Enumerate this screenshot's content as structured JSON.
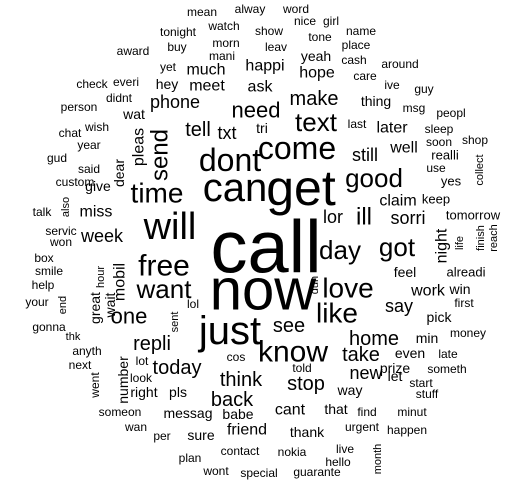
{
  "image": {
    "kind": "word cloud",
    "text_color": "#000000",
    "background": "#ffffff"
  },
  "words": [
    {
      "text": "call",
      "weight": 100
    },
    {
      "text": "now",
      "weight": 84
    },
    {
      "text": "get",
      "weight": 72
    },
    {
      "text": "can",
      "weight": 64
    },
    {
      "text": "just",
      "weight": 60
    },
    {
      "text": "will",
      "weight": 54
    },
    {
      "text": "dont",
      "weight": 50
    },
    {
      "text": "come",
      "weight": 48
    },
    {
      "text": "know",
      "weight": 46
    },
    {
      "text": "free",
      "weight": 44
    },
    {
      "text": "like",
      "weight": 42
    },
    {
      "text": "love",
      "weight": 40
    },
    {
      "text": "time",
      "weight": 40
    },
    {
      "text": "good",
      "weight": 38
    },
    {
      "text": "day",
      "weight": 37
    },
    {
      "text": "want",
      "weight": 37
    },
    {
      "text": "text",
      "weight": 36
    },
    {
      "text": "got",
      "weight": 36
    },
    {
      "text": "send",
      "weight": 34
    },
    {
      "text": "ill",
      "weight": 33
    },
    {
      "text": "one",
      "weight": 32
    },
    {
      "text": "need",
      "weight": 32
    },
    {
      "text": "home",
      "weight": 30
    },
    {
      "text": "take",
      "weight": 30
    },
    {
      "text": "back",
      "weight": 30
    },
    {
      "text": "today",
      "weight": 30
    },
    {
      "text": "see",
      "weight": 30
    },
    {
      "text": "repli",
      "weight": 28
    },
    {
      "text": "tell",
      "weight": 28
    },
    {
      "text": "make",
      "weight": 28
    },
    {
      "text": "think",
      "weight": 28
    },
    {
      "text": "stop",
      "weight": 28
    },
    {
      "text": "week",
      "weight": 28
    },
    {
      "text": "still",
      "weight": 27
    },
    {
      "text": "sorri",
      "weight": 27
    },
    {
      "text": "say",
      "weight": 27
    },
    {
      "text": "phone",
      "weight": 26
    },
    {
      "text": "txt",
      "weight": 26
    },
    {
      "text": "lor",
      "weight": 26
    },
    {
      "text": "new",
      "weight": 26
    },
    {
      "text": "later",
      "weight": 25
    },
    {
      "text": "ask",
      "weight": 25
    },
    {
      "text": "meet",
      "weight": 25
    },
    {
      "text": "much",
      "weight": 25
    },
    {
      "text": "happi",
      "weight": 24
    },
    {
      "text": "hope",
      "weight": 24
    },
    {
      "text": "well",
      "weight": 24
    },
    {
      "text": "work",
      "weight": 24
    },
    {
      "text": "claim",
      "weight": 24
    },
    {
      "text": "cant",
      "weight": 24
    },
    {
      "text": "pleas",
      "weight": 23
    },
    {
      "text": "miss",
      "weight": 23
    },
    {
      "text": "mobil",
      "weight": 22
    },
    {
      "text": "night",
      "weight": 22
    },
    {
      "text": "thing",
      "weight": 20
    },
    {
      "text": "friend",
      "weight": 22
    },
    {
      "text": "wat",
      "weight": 20
    },
    {
      "text": "hey",
      "weight": 20
    },
    {
      "text": "prize",
      "weight": 20
    },
    {
      "text": "number",
      "weight": 20
    },
    {
      "text": "thank",
      "weight": 20
    },
    {
      "text": "messag",
      "weight": 20
    },
    {
      "text": "feel",
      "weight": 18
    },
    {
      "text": "great",
      "weight": 18
    },
    {
      "text": "dear",
      "weight": 18
    },
    {
      "text": "give",
      "weight": 18
    },
    {
      "text": "wait",
      "weight": 18
    },
    {
      "text": "pls",
      "weight": 18
    },
    {
      "text": "right",
      "weight": 17
    },
    {
      "text": "even",
      "weight": 17
    },
    {
      "text": "way",
      "weight": 17
    },
    {
      "text": "babe",
      "weight": 16
    },
    {
      "text": "yeah",
      "weight": 16
    },
    {
      "text": "tri",
      "weight": 16
    },
    {
      "text": "pick",
      "weight": 16
    },
    {
      "text": "win",
      "weight": 16
    },
    {
      "text": "min",
      "weight": 16
    },
    {
      "text": "let",
      "weight": 16
    },
    {
      "text": "sure",
      "weight": 16
    },
    {
      "text": "that",
      "weight": 16
    },
    {
      "text": "alreadi",
      "weight": 15
    },
    {
      "text": "keep",
      "weight": 15
    },
    {
      "text": "realli",
      "weight": 15
    },
    {
      "text": "yes",
      "weight": 15
    },
    {
      "text": "tomorrow",
      "weight": 15
    },
    {
      "text": "first",
      "weight": 14
    },
    {
      "text": "start",
      "weight": 14
    },
    {
      "text": "sleep",
      "weight": 14
    },
    {
      "text": "said",
      "weight": 14
    },
    {
      "text": "contact",
      "weight": 14
    },
    {
      "text": "nokia",
      "weight": 14
    },
    {
      "text": "cos",
      "weight": 14
    },
    {
      "text": "find",
      "weight": 14
    },
    {
      "text": "urgent",
      "weight": 14
    },
    {
      "text": "someth",
      "weight": 13
    },
    {
      "text": "money",
      "weight": 13
    },
    {
      "text": "lol",
      "weight": 13
    },
    {
      "text": "msg",
      "weight": 13
    },
    {
      "text": "morn",
      "weight": 13
    },
    {
      "text": "show",
      "weight": 13
    },
    {
      "text": "leav",
      "weight": 13
    },
    {
      "text": "watch",
      "weight": 13
    },
    {
      "text": "tonight",
      "weight": 13
    },
    {
      "text": "mani",
      "weight": 12
    },
    {
      "text": "buy",
      "weight": 12
    },
    {
      "text": "place",
      "weight": 12
    },
    {
      "text": "name",
      "weight": 12
    },
    {
      "text": "tone",
      "weight": 12
    },
    {
      "text": "girl",
      "weight": 12
    },
    {
      "text": "nice",
      "weight": 12
    },
    {
      "text": "word",
      "weight": 12
    },
    {
      "text": "alway",
      "weight": 12
    },
    {
      "text": "mean",
      "weight": 12
    },
    {
      "text": "award",
      "weight": 12
    },
    {
      "text": "yet",
      "weight": 12
    },
    {
      "text": "cash",
      "weight": 12
    },
    {
      "text": "around",
      "weight": 12
    },
    {
      "text": "care",
      "weight": 12
    },
    {
      "text": "ive",
      "weight": 12
    },
    {
      "text": "guy",
      "weight": 12
    },
    {
      "text": "check",
      "weight": 12
    },
    {
      "text": "everi",
      "weight": 12
    },
    {
      "text": "didnt",
      "weight": 12
    },
    {
      "text": "person",
      "weight": 12
    },
    {
      "text": "wish",
      "weight": 12
    },
    {
      "text": "chat",
      "weight": 12
    },
    {
      "text": "year",
      "weight": 12
    },
    {
      "text": "gud",
      "weight": 12
    },
    {
      "text": "custom",
      "weight": 12
    },
    {
      "text": "talk",
      "weight": 12
    },
    {
      "text": "servic",
      "weight": 12
    },
    {
      "text": "won",
      "weight": 12
    },
    {
      "text": "box",
      "weight": 12
    },
    {
      "text": "smile",
      "weight": 12
    },
    {
      "text": "help",
      "weight": 12
    },
    {
      "text": "your",
      "weight": 12
    },
    {
      "text": "gonna",
      "weight": 12
    },
    {
      "text": "anyth",
      "weight": 12
    },
    {
      "text": "next",
      "weight": 12
    },
    {
      "text": "went",
      "weight": 12
    },
    {
      "text": "lot",
      "weight": 12
    },
    {
      "text": "look",
      "weight": 12
    },
    {
      "text": "someon",
      "weight": 12
    },
    {
      "text": "wan",
      "weight": 12
    },
    {
      "text": "per",
      "weight": 12
    },
    {
      "text": "plan",
      "weight": 12
    },
    {
      "text": "wont",
      "weight": 12
    },
    {
      "text": "special",
      "weight": 12
    },
    {
      "text": "guarante",
      "weight": 12
    },
    {
      "text": "hello",
      "weight": 12
    },
    {
      "text": "live",
      "weight": 12
    },
    {
      "text": "happen",
      "weight": 12
    },
    {
      "text": "minut",
      "weight": 12
    },
    {
      "text": "stuff",
      "weight": 12
    },
    {
      "text": "late",
      "weight": 12
    },
    {
      "text": "told",
      "weight": 12
    },
    {
      "text": "last",
      "weight": 12
    },
    {
      "text": "soon",
      "weight": 12
    },
    {
      "text": "use",
      "weight": 12
    },
    {
      "text": "shop",
      "weight": 12
    },
    {
      "text": "peopl",
      "weight": 12
    },
    {
      "text": "also",
      "weight": 11
    },
    {
      "text": "end",
      "weight": 11
    },
    {
      "text": "thk",
      "weight": 11
    },
    {
      "text": "hour",
      "weight": 11
    },
    {
      "text": "sent",
      "weight": 11
    },
    {
      "text": "dun",
      "weight": 11
    },
    {
      "text": "life",
      "weight": 11
    },
    {
      "text": "finish",
      "weight": 11
    },
    {
      "text": "reach",
      "weight": 11
    },
    {
      "text": "collect",
      "weight": 11
    },
    {
      "text": "month",
      "weight": 11
    }
  ]
}
